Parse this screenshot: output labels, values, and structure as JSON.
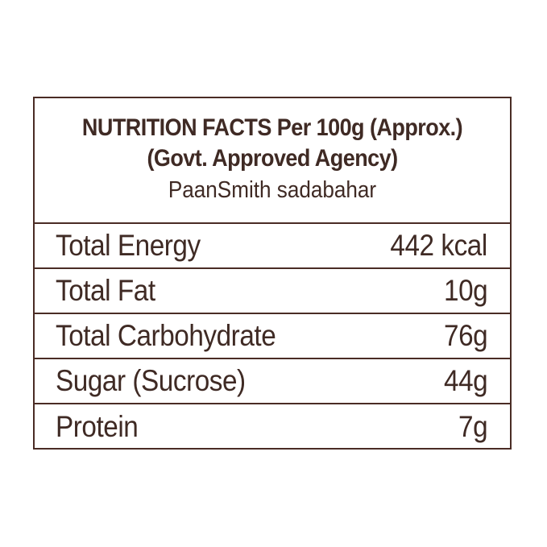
{
  "header": {
    "title_line1": "NUTRITION FACTS Per 100g (Approx.)",
    "title_line2": "(Govt. Approved Agency)",
    "product": "PaanSmith sadabahar"
  },
  "rows": [
    {
      "label": "Total Energy",
      "value": "442 kcal"
    },
    {
      "label": "Total Fat",
      "value": "10g"
    },
    {
      "label": "Total Carbohydrate",
      "value": "76g"
    },
    {
      "label": "Sugar (Sucrose)",
      "value": "44g"
    },
    {
      "label": "Protein",
      "value": "7g"
    }
  ],
  "colors": {
    "text": "#3f2a24",
    "border": "#4a2c25",
    "background": "#ffffff"
  }
}
